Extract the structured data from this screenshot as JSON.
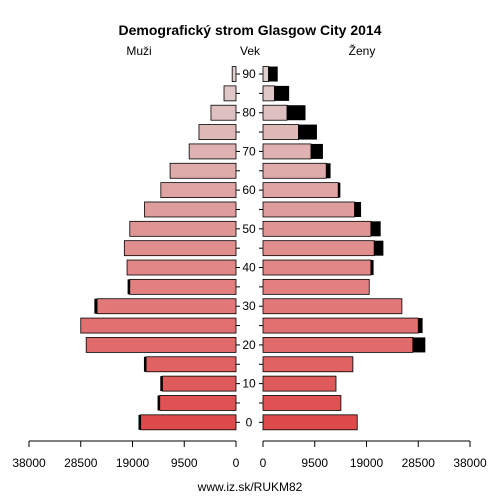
{
  "chart_data": {
    "type": "bar",
    "title": "Demografický strom Glasgow City 2014",
    "left_label": "Muži",
    "center_label": "Vek",
    "right_label": "Ženy",
    "footer": "www.iz.sk/RUKM82",
    "age_groups": [
      "0-4",
      "5-9",
      "10-14",
      "15-19",
      "20-24",
      "25-29",
      "30-34",
      "35-39",
      "40-44",
      "45-49",
      "50-54",
      "55-59",
      "60-64",
      "65-69",
      "70-74",
      "75-79",
      "80-84",
      "85-89",
      "90+"
    ],
    "age_tick_labels": [
      "0",
      "10",
      "20",
      "30",
      "40",
      "50",
      "60",
      "70",
      "80",
      "90"
    ],
    "value_tick_labels": [
      "38000",
      "28500",
      "19000",
      "9500",
      "0",
      "0",
      "9500",
      "19000",
      "28500",
      "38000"
    ],
    "value_ticks": [
      38000,
      28500,
      19000,
      9500,
      0
    ],
    "xlim": [
      0,
      38000
    ],
    "colors": {
      "black": "#000000",
      "bar_stroke": "#000000"
    },
    "series": [
      {
        "name": "Muži",
        "values": [
          17500,
          14000,
          13500,
          16500,
          27500,
          28500,
          25500,
          19500,
          20000,
          20500,
          19500,
          16800,
          13800,
          12100,
          8600,
          6800,
          4600,
          2200,
          700
        ],
        "excess": [
          400,
          400,
          400,
          400,
          0,
          0,
          500,
          400,
          0,
          0,
          0,
          0,
          0,
          0,
          0,
          0,
          0,
          0,
          0
        ],
        "colors": [
          "#dd4b4c",
          "#de5253",
          "#df5a5b",
          "#e06263",
          "#e16a6a",
          "#e27071",
          "#e27878",
          "#e28080",
          "#e18787",
          "#e08e8e",
          "#e09595",
          "#df9c9c",
          "#dfa3a3",
          "#dfaaaa",
          "#dfb1b1",
          "#dfb8b8",
          "#dfc0c0",
          "#dfc7c7",
          "#dfcfcf"
        ]
      },
      {
        "name": "Ženy",
        "values": [
          17300,
          14300,
          13400,
          16500,
          27500,
          28500,
          25500,
          19500,
          19800,
          20400,
          19800,
          16800,
          13800,
          11600,
          8800,
          6500,
          4400,
          2100,
          1000
        ],
        "excess": [
          0,
          0,
          0,
          0,
          2300,
          800,
          0,
          0,
          500,
          1700,
          1800,
          1200,
          400,
          800,
          2200,
          3400,
          3400,
          2700,
          1700
        ],
        "colors": [
          "#dd4b4c",
          "#de5253",
          "#df5a5b",
          "#e06263",
          "#e16a6a",
          "#e27071",
          "#e27878",
          "#e28080",
          "#e18787",
          "#e08e8e",
          "#e09595",
          "#df9c9c",
          "#dfa3a3",
          "#dfaaaa",
          "#dfb1b1",
          "#dfb8b8",
          "#dfc0c0",
          "#dfc7c7",
          "#dfcfcf"
        ]
      }
    ]
  }
}
